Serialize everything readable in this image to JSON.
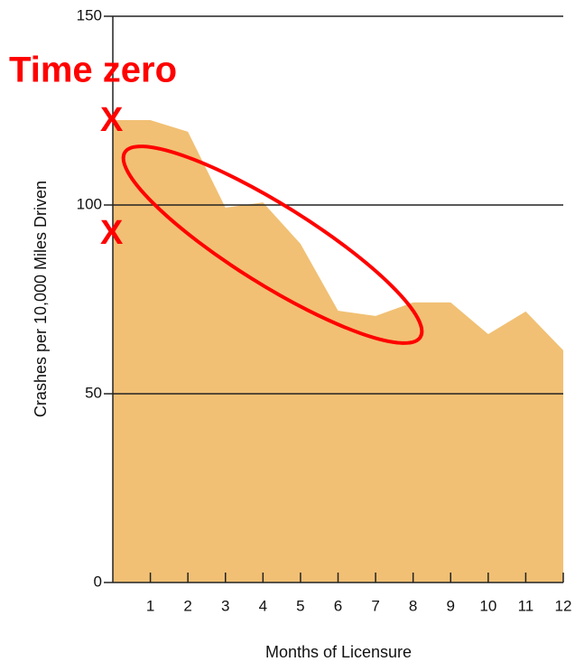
{
  "chart_data": {
    "type": "area",
    "y_label": "Crashes per 10,000 Miles Driven",
    "x_label": "Months of Licensure",
    "x": [
      0,
      1,
      2,
      3,
      4,
      5,
      6,
      7,
      8,
      9,
      10,
      11,
      12
    ],
    "values": [
      122.5,
      122.5,
      119.4,
      99.3,
      100.7,
      89.7,
      72,
      70.6,
      74.2,
      74.2,
      65.8,
      71.8,
      61.5
    ],
    "color": "#f1c074",
    "xlim": [
      0,
      12
    ],
    "xticks": [
      1,
      2,
      3,
      4,
      5,
      6,
      7,
      8,
      9,
      10,
      11,
      12
    ],
    "ylim": [
      0,
      150
    ],
    "yticks": [
      0,
      50,
      100,
      150
    ],
    "grid": true,
    "annotations": [
      "Time zero",
      "X",
      "X"
    ],
    "annotation_color": "#ff0000"
  }
}
